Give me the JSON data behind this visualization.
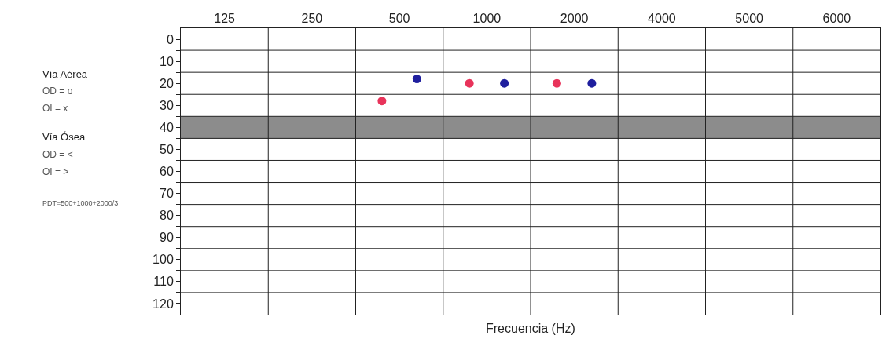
{
  "chart_data": {
    "type": "scatter",
    "xlabel": "Frecuencia (Hz)",
    "categories": [
      "125",
      "250",
      "500",
      "1000",
      "2000",
      "4000",
      "5000",
      "6000"
    ],
    "series": [
      {
        "color": "#e8335a",
        "values": [
          null,
          null,
          28,
          20,
          20,
          null,
          null,
          null
        ]
      },
      {
        "color": "#1f1f9e",
        "values": [
          null,
          null,
          18,
          20,
          20,
          null,
          null,
          null
        ]
      }
    ],
    "ylim": [
      125,
      -5
    ],
    "yticks": [
      0,
      {
        "value": 5,
        "label": null
      },
      10,
      {
        "value": 15,
        "label": null
      },
      20,
      {
        "value": 25,
        "label": null
      },
      30,
      {
        "value": 35,
        "label": null
      },
      40,
      {
        "value": 45,
        "label": null
      },
      50,
      {
        "value": 55,
        "label": null
      },
      60,
      {
        "value": 65,
        "label": null
      },
      70,
      {
        "value": 75,
        "label": null
      },
      80,
      {
        "value": 85,
        "label": null
      },
      90,
      {
        "value": 95,
        "label": null
      },
      100,
      {
        "value": 105,
        "label": null
      },
      110,
      {
        "value": 115,
        "label": null
      },
      120
    ],
    "bands": [
      {
        "axis": "y",
        "from": 35,
        "to": 45,
        "color": "#8c8c8c"
      }
    ],
    "grid": true,
    "marker": "circle",
    "annotations": [
      "Vía Aérea",
      "OD = o",
      "OI = x",
      "Vía Ósea",
      "OD = <",
      "OI = >",
      "PDT=500+1000+2000/3"
    ]
  }
}
